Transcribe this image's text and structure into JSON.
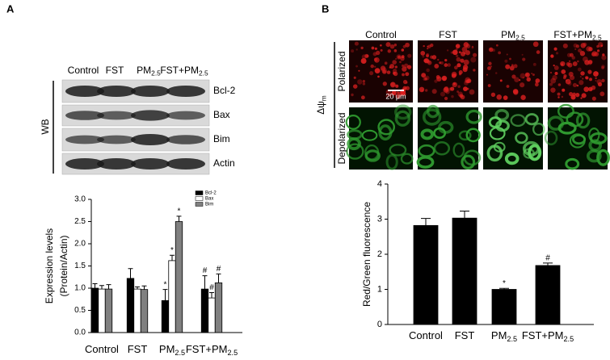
{
  "figure": {
    "panel_a": {
      "label": "A",
      "lanes": [
        {
          "main": "Control"
        },
        {
          "main": "FST"
        },
        {
          "main": "PM",
          "sub": "2.5"
        },
        {
          "main": "FST+PM",
          "sub": "2.5"
        }
      ],
      "rows": [
        "Bcl-2",
        "Bax",
        "Bim",
        "Actin"
      ],
      "method": "WB"
    },
    "panel_b": {
      "label": "B",
      "columns": [
        {
          "main": "Control"
        },
        {
          "main": "FST"
        },
        {
          "main": "PM",
          "sub": "2.5"
        },
        {
          "main": "FST+PM",
          "sub": "2.5"
        }
      ],
      "rows": [
        "Polarized",
        "Depolarized"
      ],
      "row_group": {
        "main": "Δψ",
        "sub": "m"
      },
      "scale_bar": "20 μm"
    }
  },
  "chart_data": [
    {
      "type": "bar",
      "ylabel": [
        "Expression levels",
        "(Protein/Actin)"
      ],
      "categories": [
        {
          "main": "Control"
        },
        {
          "main": "FST"
        },
        {
          "main": "PM",
          "sub": "2.5"
        },
        {
          "main": "FST+PM",
          "sub": "2.5"
        }
      ],
      "series": [
        {
          "name": "Bcl-2",
          "color": "#000000",
          "values": [
            1.0,
            1.22,
            0.72,
            0.98
          ],
          "errors": [
            0.1,
            0.22,
            0.25,
            0.3
          ],
          "significance": [
            null,
            null,
            "*",
            "#"
          ]
        },
        {
          "name": "Bax",
          "color": "#ffffff",
          "values": [
            0.98,
            0.98,
            1.62,
            0.78
          ],
          "errors": [
            0.08,
            0.05,
            0.12,
            0.12
          ],
          "significance": [
            null,
            null,
            "*",
            "#"
          ]
        },
        {
          "name": "Bim",
          "color": "#808080",
          "values": [
            0.98,
            0.97,
            2.5,
            1.12
          ],
          "errors": [
            0.1,
            0.08,
            0.12,
            0.2
          ],
          "significance": [
            null,
            null,
            "*",
            "#"
          ]
        }
      ],
      "ylim": [
        0,
        3
      ],
      "yticks": [
        {
          "value": 0,
          "label": "0.0"
        },
        0.5,
        {
          "value": 1,
          "label": "1.0"
        },
        1.5,
        {
          "value": 2,
          "label": "2.0"
        },
        2.5,
        {
          "value": 3,
          "label": "3.0"
        }
      ],
      "legend": "upper right"
    },
    {
      "type": "bar",
      "ylabel": [
        "Red/Green fluorescence"
      ],
      "categories": [
        {
          "main": "Control"
        },
        {
          "main": "FST"
        },
        {
          "main": "PM",
          "sub": "2.5"
        },
        {
          "main": "FST+PM",
          "sub": "2.5"
        }
      ],
      "series": [
        {
          "color": "#000000",
          "values": [
            2.82,
            3.03,
            1.0,
            1.68
          ],
          "errors": [
            0.2,
            0.2,
            0.03,
            0.07
          ],
          "significance": [
            null,
            null,
            "*",
            "#"
          ]
        }
      ],
      "ylim": [
        0,
        4
      ],
      "yticks": [
        0,
        1,
        2,
        3,
        4
      ]
    }
  ]
}
